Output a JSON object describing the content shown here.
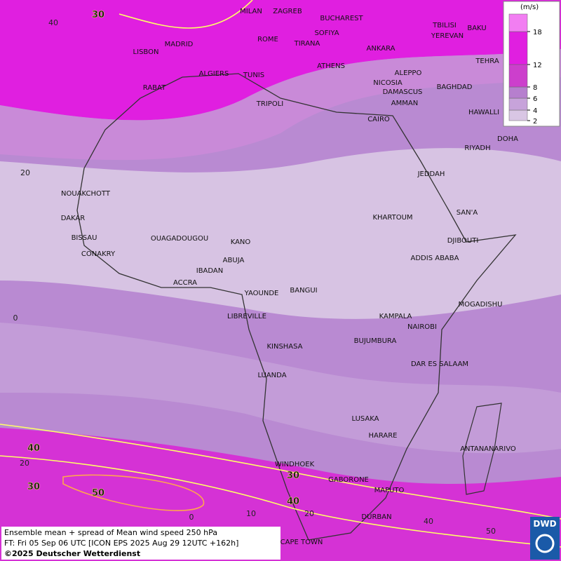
{
  "map": {
    "cities": [
      "MILAN",
      "ZAGREB",
      "BUCHAREST",
      "TBILISI",
      "BAKU",
      "MADRID",
      "ROME",
      "SOFIYA",
      "YEREVAN",
      "LISBON",
      "TIRANA",
      "ANKARA",
      "TEHRA",
      "ALGIERS",
      "TUNIS",
      "ATHENS",
      "ALEPPO",
      "RABAT",
      "NICOSIA",
      "BAGHDAD",
      "DAMASCUS",
      "TRIPOLI",
      "AMMAN",
      "HAWALLI",
      "CAIRO",
      "DOHA",
      "RIYADH",
      "JEDDAH",
      "NOUAKCHOTT",
      "SAN'A",
      "KHARTOUM",
      "DAKAR",
      "BISSAU",
      "OUAGADOUGOU",
      "KANO",
      "DJIBOUTI",
      "CONAKRY",
      "ABUJA",
      "ADDIS ABABA",
      "IBADAN",
      "ACCRA",
      "YAOUNDE",
      "BANGUI",
      "MOGADISHU",
      "LIBREVILLE",
      "KAMPALA",
      "NAIROBI",
      "BUJUMBURA",
      "KINSHASA",
      "DAR ES SALAAM",
      "LUANDA",
      "LUSAKA",
      "HARARE",
      "ANTANANARIVO",
      "WINDHOEK",
      "GABORONE",
      "MAPUTO",
      "DURBAN",
      "CAPE TOWN"
    ],
    "grid_labels": [
      "40",
      "20",
      "0",
      "20",
      "0",
      "10",
      "20",
      "40",
      "50"
    ],
    "contour_labels": [
      "30",
      "40",
      "30",
      "50",
      "30",
      "40"
    ]
  },
  "legend": {
    "unit": "(m/s)",
    "levels": [
      2,
      4,
      6,
      8,
      12,
      18
    ],
    "colors": [
      "#d9c6e4",
      "#c7a3da",
      "#b67fce",
      "#cc3fcc",
      "#e01fe0",
      "#f27ef2"
    ]
  },
  "footer": {
    "lines": [
      "Ensemble mean + spread of Mean wind speed 250 hPa",
      "FT: Fri 05 Sep 06 UTC [ICON EPS 2025 Aug 29 12UTC +162h]",
      "©2025 Deutscher Wetterdienst"
    ],
    "logo": "DWD"
  }
}
